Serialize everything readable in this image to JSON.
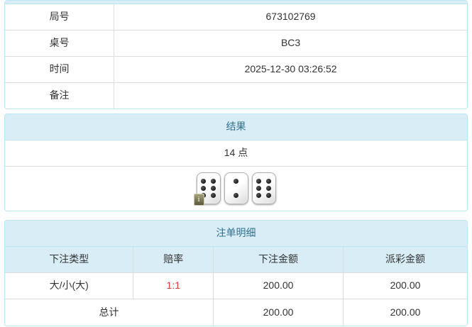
{
  "colors": {
    "panel_border": "#bce8f1",
    "heading_bg": "#d9edf7",
    "heading_text": "#31708f",
    "cell_border": "#dddddd",
    "text": "#333333",
    "odds_red": "#e23b3b"
  },
  "top_panel": {
    "rows": [
      {
        "label": "局号",
        "value": "673102769"
      },
      {
        "label": "桌号",
        "value": "BC3"
      },
      {
        "label": "时间",
        "value": "2025-12-30 03:26:52"
      },
      {
        "label": "备注",
        "value": ""
      }
    ]
  },
  "result_panel": {
    "title": "结果",
    "points_text": "14 点",
    "dice": [
      6,
      2,
      6
    ],
    "info_badge_text": "i"
  },
  "bets_panel": {
    "title": "注单明细",
    "columns": [
      "下注类型",
      "赔率",
      "下注金额",
      "派彩金额"
    ],
    "rows": [
      {
        "bet_type": "大/小(大)",
        "odds": "1:1",
        "bet_amount": "200.00",
        "payout_amount": "200.00"
      }
    ],
    "total_row": {
      "label": "总计",
      "bet_amount": "200.00",
      "payout_amount": "200.00"
    }
  }
}
